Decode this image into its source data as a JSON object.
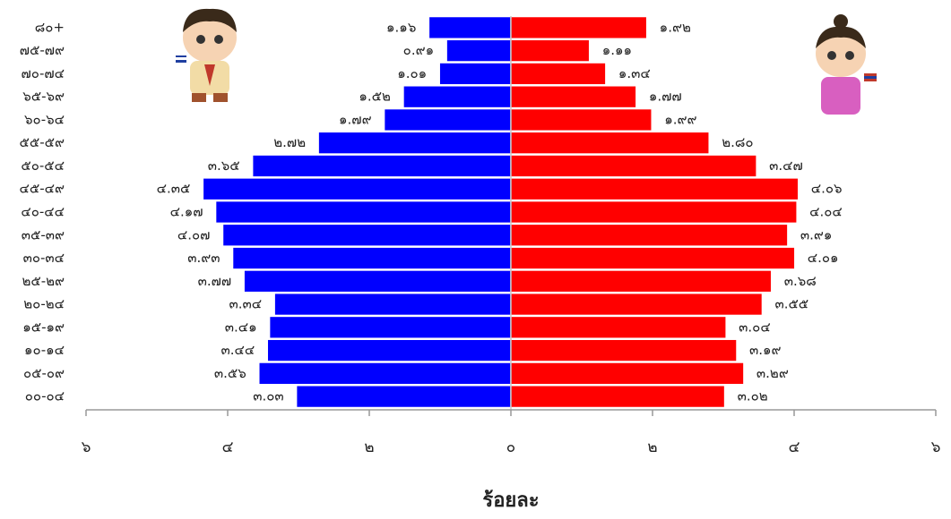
{
  "chart_data": {
    "type": "pyramid",
    "categories": [
      "๘๐+",
      "๗๕-๗๙",
      "๗๐-๗๔",
      "๖๕-๖๙",
      "๖๐-๖๔",
      "๕๕-๕๙",
      "๕๐-๕๔",
      "๔๕-๔๙",
      "๔๐-๔๔",
      "๓๕-๓๙",
      "๓๐-๓๔",
      "๒๕-๒๙",
      "๒๐-๒๔",
      "๑๕-๑๙",
      "๑๐-๑๔",
      "๐๕-๐๙",
      "๐๐-๐๔"
    ],
    "series": [
      {
        "color": "#0000ff",
        "values": [
          -1.16,
          -0.91,
          -1.01,
          -1.52,
          -1.79,
          -2.72,
          -3.65,
          -4.35,
          -4.17,
          -4.07,
          -3.93,
          -3.77,
          -3.34,
          -3.41,
          -3.44,
          -3.56,
          -3.03
        ],
        "value_labels": [
          "๑.๑๖",
          "๐.๙๑",
          "๑.๐๑",
          "๑.๕๒",
          "๑.๗๙",
          "๒.๗๒",
          "๓.๖๕",
          "๔.๓๕",
          "๔.๑๗",
          "๔.๐๗",
          "๓.๙๓",
          "๓.๗๗",
          "๓.๓๔",
          "๓.๔๑",
          "๓.๔๔",
          "๓.๕๖",
          "๓.๐๓"
        ]
      },
      {
        "color": "#ff0000",
        "values": [
          1.92,
          1.11,
          1.34,
          1.77,
          1.99,
          2.8,
          3.47,
          4.06,
          4.04,
          3.91,
          4.01,
          3.68,
          3.55,
          3.04,
          3.19,
          3.29,
          3.02
        ],
        "value_labels": [
          "๑.๙๒",
          "๑.๑๑",
          "๑.๓๔",
          "๑.๗๗",
          "๑.๙๙",
          "๒.๘๐",
          "๓.๔๗",
          "๔.๐๖",
          "๔.๐๔",
          "๓.๙๑",
          "๔.๐๑",
          "๓.๖๘",
          "๓.๕๕",
          "๓.๐๔",
          "๓.๑๙",
          "๓.๒๙",
          "๓.๐๒"
        ]
      }
    ],
    "xlim": [
      -6,
      6
    ],
    "xticks": [
      {
        "value": -6,
        "label": "๖"
      },
      {
        "value": -4,
        "label": "๔"
      },
      {
        "value": -2,
        "label": "๒"
      },
      {
        "value": 0,
        "label": "๐"
      },
      {
        "value": 2,
        "label": "๒"
      },
      {
        "value": 4,
        "label": "๔"
      },
      {
        "value": 6,
        "label": "๖"
      }
    ],
    "xlabel": "ร้อยละ"
  }
}
